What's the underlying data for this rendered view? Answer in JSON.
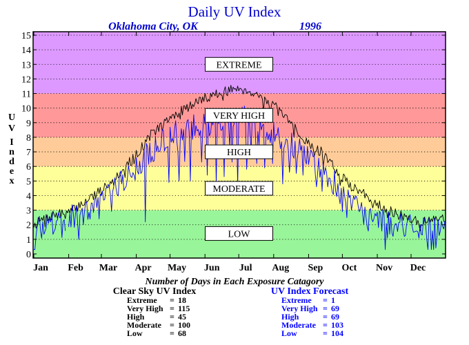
{
  "chart_data": {
    "type": "line",
    "title": "Daily UV Index",
    "subtitle_location": "Oklahoma City, OK",
    "subtitle_year": "1996",
    "ylabel": "UV Index",
    "ylim": [
      0,
      15
    ],
    "y_ticks": [
      0,
      1,
      2,
      3,
      4,
      5,
      6,
      7,
      8,
      9,
      10,
      11,
      12,
      13,
      14,
      15
    ],
    "xlim": [
      1,
      366
    ],
    "x_ticks": [
      {
        "label": "Jan",
        "day": 1
      },
      {
        "label": "Feb",
        "day": 32
      },
      {
        "label": "Mar",
        "day": 61
      },
      {
        "label": "Apr",
        "day": 92
      },
      {
        "label": "May",
        "day": 122
      },
      {
        "label": "Jun",
        "day": 153
      },
      {
        "label": "Jul",
        "day": 183
      },
      {
        "label": "Aug",
        "day": 214
      },
      {
        "label": "Sep",
        "day": 245
      },
      {
        "label": "Oct",
        "day": 275
      },
      {
        "label": "Nov",
        "day": 306
      },
      {
        "label": "Dec",
        "day": 336
      }
    ],
    "grid": "dotted horizontal",
    "bands": [
      {
        "label": "LOW",
        "from": 0,
        "to": 3,
        "color": "#99f599",
        "label_at": 1.4
      },
      {
        "label": "MODERATE",
        "from": 3,
        "to": 6,
        "color": "#ffff99",
        "label_at": 4.5
      },
      {
        "label": "HIGH",
        "from": 6,
        "to": 8,
        "color": "#ffcc99",
        "label_at": 7
      },
      {
        "label": "VERY HIGH",
        "from": 8,
        "to": 11,
        "color": "#ff9999",
        "label_at": 9.5
      },
      {
        "label": "EXTREME",
        "from": 11,
        "to": 15,
        "color": "#dd99ff",
        "label_at": 13
      }
    ],
    "series": [
      {
        "key": "clear_sky",
        "color": "#000000",
        "anchors": [
          [
            1,
            2.0
          ],
          [
            15,
            2.6
          ],
          [
            32,
            2.8
          ],
          [
            50,
            3.8
          ],
          [
            61,
            4.4
          ],
          [
            75,
            5.4
          ],
          [
            92,
            6.8
          ],
          [
            105,
            8.2
          ],
          [
            122,
            9.3
          ],
          [
            140,
            10.2
          ],
          [
            153,
            10.7
          ],
          [
            165,
            11.0
          ],
          [
            183,
            11.4
          ],
          [
            198,
            11.0
          ],
          [
            214,
            10.2
          ],
          [
            230,
            8.8
          ],
          [
            245,
            7.6
          ],
          [
            260,
            6.8
          ],
          [
            275,
            5.2
          ],
          [
            290,
            4.3
          ],
          [
            306,
            3.5
          ],
          [
            320,
            2.8
          ],
          [
            336,
            2.4
          ],
          [
            350,
            2.2
          ],
          [
            366,
            2.5
          ]
        ],
        "noise": 0.35,
        "seed": 7,
        "dips": []
      },
      {
        "key": "forecast",
        "color": "#0000ff",
        "anchors": [
          [
            1,
            1.4
          ],
          [
            10,
            2.0
          ],
          [
            20,
            2.2
          ],
          [
            30,
            1.6
          ],
          [
            32,
            2.5
          ],
          [
            50,
            3.2
          ],
          [
            61,
            3.9
          ],
          [
            75,
            4.8
          ],
          [
            92,
            5.8
          ],
          [
            105,
            7.1
          ],
          [
            122,
            8.1
          ],
          [
            140,
            8.7
          ],
          [
            153,
            8.8
          ],
          [
            165,
            9.2
          ],
          [
            183,
            9.4
          ],
          [
            198,
            9.0
          ],
          [
            214,
            8.4
          ],
          [
            230,
            7.5
          ],
          [
            245,
            6.6
          ],
          [
            260,
            5.7
          ],
          [
            275,
            4.1
          ],
          [
            290,
            3.2
          ],
          [
            306,
            2.5
          ],
          [
            320,
            2.1
          ],
          [
            336,
            1.8
          ],
          [
            350,
            1.6
          ],
          [
            366,
            2.1
          ]
        ],
        "noise": 0.9,
        "seed": 19,
        "dips": [
          [
            45,
            2.0
          ],
          [
            59,
            2.4
          ],
          [
            100,
            2.2
          ],
          [
            121,
            4.9
          ],
          [
            130,
            5.0
          ],
          [
            140,
            5.0
          ],
          [
            150,
            6.3
          ],
          [
            155,
            5.4
          ],
          [
            163,
            4.8
          ],
          [
            170,
            5.3
          ],
          [
            177,
            6.3
          ],
          [
            182,
            4.7
          ],
          [
            190,
            5.8
          ],
          [
            199,
            6.2
          ],
          [
            206,
            5.9
          ],
          [
            213,
            6.2
          ],
          [
            222,
            4.8
          ],
          [
            228,
            5.6
          ],
          [
            240,
            5.4
          ],
          [
            252,
            4.6
          ],
          [
            262,
            4.6
          ],
          [
            268,
            5.7
          ],
          [
            275,
            2.9
          ],
          [
            285,
            4.0
          ],
          [
            297,
            1.9
          ],
          [
            301,
            2.4
          ],
          [
            320,
            1.2
          ],
          [
            330,
            1.2
          ],
          [
            346,
            1.3
          ]
        ],
        "breaks": [
          [
            30,
            31
          ]
        ]
      }
    ]
  },
  "text": {
    "title": "Daily UV Index",
    "subtitle_location": "Oklahoma City, OK",
    "subtitle_year": "1996",
    "ylabel_letters": [
      "U",
      "V",
      "I",
      "n",
      "d",
      "e",
      "x"
    ],
    "days_caption": "Number of Days in Each Exposure Catagory"
  },
  "summary": {
    "clear_sky": {
      "title": "Clear Sky UV Index",
      "rows": [
        {
          "label": "Extreme",
          "sep": "=",
          "value": "18"
        },
        {
          "label": "Very High",
          "sep": "=",
          "value": "115"
        },
        {
          "label": "High",
          "sep": "=",
          "value": "45"
        },
        {
          "label": "Moderate",
          "sep": "=",
          "value": "100"
        },
        {
          "label": "Low",
          "sep": "=",
          "value": "68"
        }
      ]
    },
    "forecast": {
      "title": "UV Index Forecast",
      "rows": [
        {
          "label": "Extreme",
          "sep": "=",
          "value": "1"
        },
        {
          "label": "Very High",
          "sep": "=",
          "value": "69"
        },
        {
          "label": "High",
          "sep": "=",
          "value": "69"
        },
        {
          "label": "Moderate",
          "sep": "=",
          "value": "103"
        },
        {
          "label": "Low",
          "sep": "=",
          "value": "104"
        }
      ]
    }
  },
  "colors": {
    "title": "#0000cc",
    "axis": "#000000",
    "forecast_text": "#0000ff"
  }
}
